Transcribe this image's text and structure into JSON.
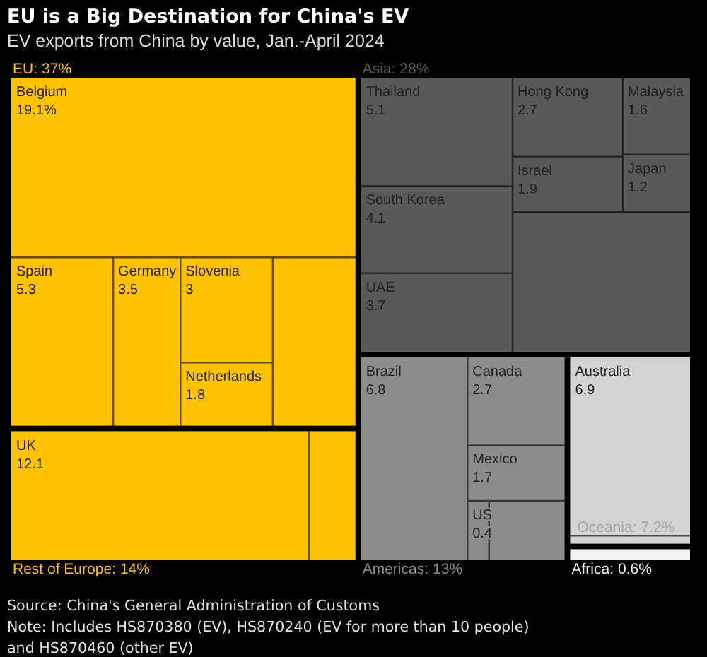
{
  "chart_data": {
    "type": "other",
    "title": "EU is a Big Destination for China's EV",
    "subtitle": "EV exports from China by value, Jan.-April 2024",
    "categories": [
      "Belgium",
      "Spain",
      "Germany",
      "Slovenia",
      "Netherlands",
      "UK",
      "Thailand",
      "South Korea",
      "UAE",
      "Hong Kong",
      "Israel",
      "Malaysia",
      "Japan",
      "Brazil",
      "Canada",
      "Mexico",
      "US",
      "Australia"
    ],
    "series": [
      {
        "name": "EU:",
        "color": "#fdc300",
        "values": [
          19.1,
          5.3,
          3.5,
          3,
          1.8,
          null,
          null,
          null,
          null,
          null,
          null,
          null,
          null,
          null,
          null,
          null,
          null,
          null
        ],
        "value_labels": [
          "19.1%",
          "5.3",
          "3.5",
          "3",
          "1.8",
          null,
          null,
          null,
          null,
          null,
          null,
          null,
          null,
          null,
          null,
          null,
          null,
          null
        ]
      },
      {
        "name": "Rest of Europe:",
        "color": "#fdc300",
        "values": [
          null,
          null,
          null,
          null,
          null,
          12.1,
          null,
          null,
          null,
          null,
          null,
          null,
          null,
          null,
          null,
          null,
          null,
          null
        ],
        "value_labels": [
          null,
          null,
          null,
          null,
          null,
          "12.1",
          null,
          null,
          null,
          null,
          null,
          null,
          null,
          null,
          null,
          null,
          null,
          null
        ]
      },
      {
        "name": "Asia:",
        "color": "#595959",
        "values": [
          null,
          null,
          null,
          null,
          null,
          null,
          5.1,
          4.1,
          3.7,
          2.7,
          1.9,
          1.6,
          1.2,
          null,
          null,
          null,
          null,
          null
        ],
        "value_labels": [
          null,
          null,
          null,
          null,
          null,
          null,
          "5.1",
          "4.1",
          "3.7",
          "2.7",
          "1.9",
          "1.6",
          "1.2",
          null,
          null,
          null,
          null,
          null
        ]
      },
      {
        "name": "Americas:",
        "color": "#8c8c8c",
        "values": [
          null,
          null,
          null,
          null,
          null,
          null,
          null,
          null,
          null,
          null,
          null,
          null,
          null,
          6.8,
          2.7,
          1.7,
          0.4,
          null
        ],
        "value_labels": [
          null,
          null,
          null,
          null,
          null,
          null,
          null,
          null,
          null,
          null,
          null,
          null,
          null,
          "6.8",
          "2.7",
          "1.7",
          "0.4",
          null
        ]
      },
      {
        "name": "Oceania:",
        "color": "#d3d3d3",
        "values": [
          null,
          null,
          null,
          null,
          null,
          null,
          null,
          null,
          null,
          null,
          null,
          null,
          null,
          null,
          null,
          null,
          null,
          6.9
        ],
        "value_labels": [
          null,
          null,
          null,
          null,
          null,
          null,
          null,
          null,
          null,
          null,
          null,
          null,
          null,
          null,
          null,
          null,
          null,
          "6.9"
        ]
      },
      {
        "name": "Africa:",
        "color": "#f0f0f0",
        "values": [
          null,
          null,
          null,
          null,
          null,
          null,
          null,
          null,
          null,
          null,
          null,
          null,
          null,
          null,
          null,
          null,
          null,
          null
        ],
        "value_labels": [
          null,
          null,
          null,
          null,
          null,
          null,
          null,
          null,
          null,
          null,
          null,
          null,
          null,
          null,
          null,
          null,
          null,
          null
        ]
      }
    ],
    "totals": [
      "37%",
      "14%",
      "28%",
      "13%",
      "7.2%",
      "0.6%"
    ],
    "annotations": [
      "Source: China's General Administration of Customs",
      "Note: Includes HS870380 (EV), HS870240 (EV for more than 10 people) and HS870460 (other EV)"
    ]
  }
}
